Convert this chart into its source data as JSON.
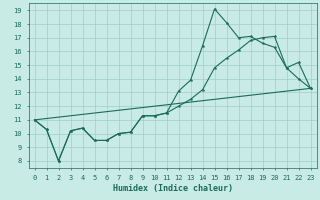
{
  "xlabel": "Humidex (Indice chaleur)",
  "xlim": [
    -0.5,
    23.5
  ],
  "ylim": [
    7.5,
    19.5
  ],
  "xticks": [
    0,
    1,
    2,
    3,
    4,
    5,
    6,
    7,
    8,
    9,
    10,
    11,
    12,
    13,
    14,
    15,
    16,
    17,
    18,
    19,
    20,
    21,
    22,
    23
  ],
  "yticks": [
    8,
    9,
    10,
    11,
    12,
    13,
    14,
    15,
    16,
    17,
    18,
    19
  ],
  "background_color": "#c8ebe5",
  "grid_color": "#a0cfc8",
  "line_color": "#1a6b5c",
  "line1_x": [
    0,
    1,
    2,
    3,
    4,
    5,
    6,
    7,
    8,
    9,
    10,
    11,
    12,
    13,
    14,
    15,
    16,
    17,
    18,
    19,
    20,
    21,
    22,
    23
  ],
  "line1_y": [
    11.0,
    10.3,
    8.0,
    10.2,
    10.4,
    9.5,
    9.5,
    10.0,
    10.1,
    11.3,
    11.3,
    11.5,
    13.1,
    13.9,
    16.4,
    19.1,
    18.1,
    17.0,
    17.1,
    16.6,
    16.3,
    14.8,
    14.0,
    13.3
  ],
  "line2_x": [
    0,
    1,
    2,
    3,
    4,
    5,
    6,
    7,
    8,
    9,
    10,
    11,
    12,
    13,
    14,
    15,
    16,
    17,
    18,
    19,
    20,
    21,
    22,
    23
  ],
  "line2_y": [
    11.0,
    10.3,
    8.0,
    10.2,
    10.4,
    9.5,
    9.5,
    10.0,
    10.1,
    11.3,
    11.3,
    11.5,
    12.0,
    12.5,
    13.2,
    14.8,
    15.5,
    16.1,
    16.8,
    17.0,
    17.1,
    14.8,
    15.2,
    13.3
  ],
  "line3_x": [
    0,
    23
  ],
  "line3_y": [
    11.0,
    13.3
  ]
}
